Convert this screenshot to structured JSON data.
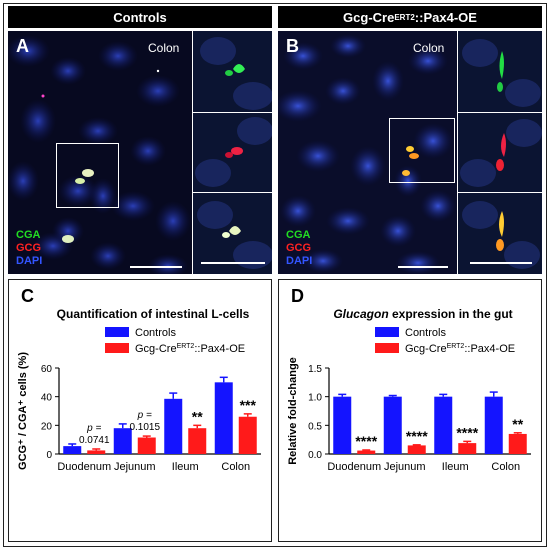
{
  "panels": {
    "A": {
      "letter": "A",
      "header": "Controls",
      "tissue": "Colon"
    },
    "B": {
      "letter": "B",
      "header_prefix": "Gcg-Cre",
      "header_sup": "ERT2",
      "header_suffix": "::Pax4-OE",
      "tissue": "Colon"
    },
    "channels": {
      "cga": "CGA",
      "gcg": "GCG",
      "dapi": "DAPI"
    }
  },
  "colors": {
    "controls": "#1414ff",
    "pax4": "#ff1a1a",
    "cga": "#22dd22",
    "gcg": "#ff2222",
    "dapi": "#3355ff"
  },
  "chart_data": [
    {
      "type": "bar",
      "panel": "C",
      "title": "Quantification of intestinal L-cells",
      "categories": [
        "Duodenum",
        "Jejunum",
        "Ileum",
        "Colon"
      ],
      "ylabel": "GCG⁺ / CGA⁺ cells (%)",
      "ylim": [
        0,
        60
      ],
      "yticks": [
        0,
        20,
        40,
        60
      ],
      "series": [
        {
          "name": "Controls",
          "values": [
            5.5,
            18,
            38.5,
            50
          ],
          "errors": [
            1.5,
            3,
            4,
            3.5
          ]
        },
        {
          "name": "Gcg-CreERT2::Pax4-OE",
          "values": [
            2.5,
            11.5,
            18,
            26
          ],
          "errors": [
            1,
            1,
            2,
            2
          ]
        }
      ],
      "annotations": [
        {
          "category": "Duodenum",
          "lines": [
            "p =",
            "0.0741"
          ]
        },
        {
          "category": "Jejunum",
          "lines": [
            "p =",
            "0.1015"
          ]
        },
        {
          "category": "Ileum",
          "lines": [
            "**"
          ]
        },
        {
          "category": "Colon",
          "lines": [
            "***"
          ]
        }
      ]
    },
    {
      "type": "bar",
      "panel": "D",
      "title_italic": "Glucagon",
      "title_rest": " expression in the gut",
      "categories": [
        "Duodenum",
        "Jejunum",
        "Ileum",
        "Colon"
      ],
      "ylabel": "Relative fold-change",
      "ylim": [
        0,
        1.5
      ],
      "yticks": [
        "0.0",
        "0.5",
        "1.0",
        "1.5"
      ],
      "series": [
        {
          "name": "Controls",
          "values": [
            1.0,
            1.0,
            1.0,
            1.0
          ],
          "errors": [
            0.04,
            0.02,
            0.04,
            0.08
          ]
        },
        {
          "name": "Gcg-CreERT2::Pax4-OE",
          "values": [
            0.06,
            0.15,
            0.19,
            0.35
          ],
          "errors": [
            0.01,
            0.01,
            0.03,
            0.02
          ]
        }
      ],
      "annotations": [
        {
          "category": "Duodenum",
          "lines": [
            "****"
          ]
        },
        {
          "category": "Jejunum",
          "lines": [
            "****"
          ]
        },
        {
          "category": "Ileum",
          "lines": [
            "****"
          ]
        },
        {
          "category": "Colon",
          "lines": [
            "**"
          ]
        }
      ]
    }
  ],
  "letters": {
    "C": "C",
    "D": "D"
  },
  "legend": {
    "controls": "Controls",
    "pax4_prefix": "Gcg-Cre",
    "pax4_sup": "ERT2",
    "pax4_suffix": "::Pax4-OE"
  }
}
